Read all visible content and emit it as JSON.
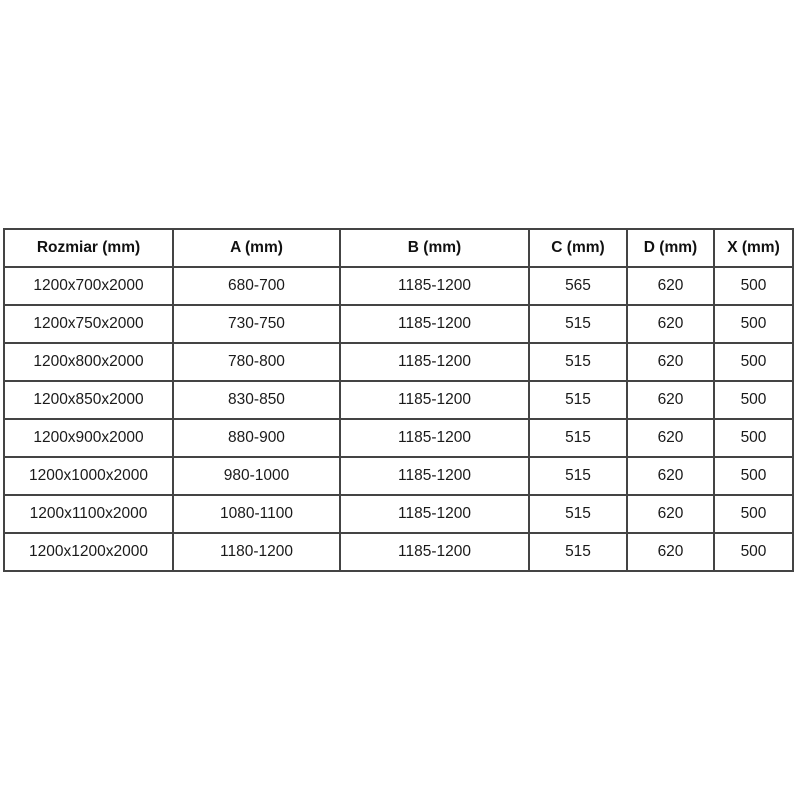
{
  "table": {
    "headers": [
      "Rozmiar (mm)",
      "A (mm)",
      "B (mm)",
      "C (mm)",
      "D (mm)",
      "X (mm)"
    ],
    "rows": [
      [
        "1200x700x2000",
        "680-700",
        "1185-1200",
        "565",
        "620",
        "500"
      ],
      [
        "1200x750x2000",
        "730-750",
        "1185-1200",
        "515",
        "620",
        "500"
      ],
      [
        "1200x800x2000",
        "780-800",
        "1185-1200",
        "515",
        "620",
        "500"
      ],
      [
        "1200x850x2000",
        "830-850",
        "1185-1200",
        "515",
        "620",
        "500"
      ],
      [
        "1200x900x2000",
        "880-900",
        "1185-1200",
        "515",
        "620",
        "500"
      ],
      [
        "1200x1000x2000",
        "980-1000",
        "1185-1200",
        "515",
        "620",
        "500"
      ],
      [
        "1200x1100x2000",
        "1080-1100",
        "1185-1200",
        "515",
        "620",
        "500"
      ],
      [
        "1200x1200x2000",
        "1180-1200",
        "1185-1200",
        "515",
        "620",
        "500"
      ]
    ],
    "colors": {
      "border": "#444444",
      "text": "#1a1a1a",
      "background": "#ffffff"
    }
  }
}
